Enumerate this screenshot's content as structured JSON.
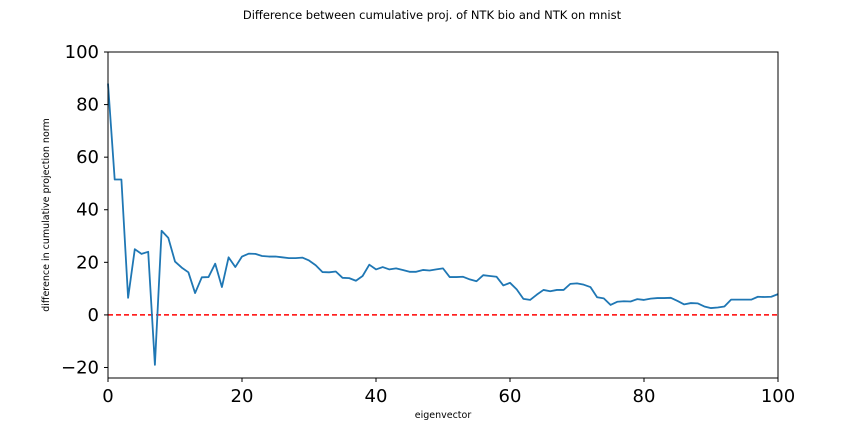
{
  "chart_data": {
    "type": "line",
    "title": "Difference between cumulative proj. of NTK bio and NTK on mnist",
    "xlabel": "eigenvector",
    "ylabel": "difference in cumulative projection norm",
    "xlim": [
      0,
      100
    ],
    "ylim": [
      -24,
      100
    ],
    "x_ticks": [
      0,
      20,
      40,
      60,
      80,
      100
    ],
    "x_tick_labels": [
      "0",
      "20",
      "40",
      "60",
      "80",
      "100"
    ],
    "y_ticks": [
      -20,
      0,
      20,
      40,
      60,
      80,
      100
    ],
    "y_tick_labels": [
      "−20",
      "0",
      "20",
      "40",
      "60",
      "80",
      "100"
    ],
    "grid": false,
    "series": [
      {
        "color": "#1f77b4",
        "x": [
          0,
          1,
          2,
          3,
          4,
          5,
          6,
          7,
          8,
          9,
          10,
          11,
          12,
          13,
          14,
          15,
          16,
          17,
          18,
          19,
          20,
          21,
          22,
          23,
          24,
          25,
          26,
          27,
          28,
          29,
          30,
          31,
          32,
          33,
          34,
          35,
          36,
          37,
          38,
          39,
          40,
          41,
          42,
          43,
          44,
          45,
          46,
          47,
          48,
          49,
          50,
          51,
          52,
          53,
          54,
          55,
          56,
          57,
          58,
          59,
          60,
          61,
          62,
          63,
          64,
          65,
          66,
          67,
          68,
          69,
          70,
          71,
          72,
          73,
          74,
          75,
          76,
          77,
          78,
          79,
          80,
          81,
          82,
          83,
          84,
          85,
          86,
          87,
          88,
          89,
          90,
          91,
          92,
          93,
          94,
          95,
          96,
          97,
          98,
          99,
          100
        ],
        "values": [
          88,
          51.5,
          51.5,
          6.5,
          25,
          23.2,
          24,
          -19,
          32,
          29.3,
          20.3,
          18,
          16.2,
          8.3,
          14.3,
          14.4,
          19.5,
          10.6,
          21.9,
          18.2,
          22.2,
          23.3,
          23.2,
          22.4,
          22.2,
          22.2,
          21.9,
          21.6,
          21.6,
          21.8,
          20.7,
          18.9,
          16.3,
          16.2,
          16.5,
          14.1,
          14,
          13,
          14.8,
          19.1,
          17.3,
          18.2,
          17.3,
          17.7,
          17.1,
          16.4,
          16.4,
          17.1,
          16.9,
          17.3,
          17.7,
          14.4,
          14.4,
          14.5,
          13.5,
          12.8,
          15.1,
          14.8,
          14.5,
          11.2,
          12.2,
          9.7,
          6.1,
          5.7,
          7.7,
          9.5,
          9,
          9.5,
          9.5,
          11.8,
          12,
          11.5,
          10.6,
          6.7,
          6.3,
          3.8,
          5,
          5.2,
          5.1,
          6,
          5.7,
          6.2,
          6.4,
          6.4,
          6.5,
          5.3,
          4,
          4.5,
          4.4,
          3.2,
          2.6,
          2.8,
          3.2,
          5.8,
          5.8,
          5.8,
          5.8,
          6.9,
          6.8,
          6.9,
          7.9
        ]
      }
    ],
    "reference_lines": [
      {
        "y": 0,
        "color": "#ff0000",
        "style": "dashed"
      }
    ]
  }
}
